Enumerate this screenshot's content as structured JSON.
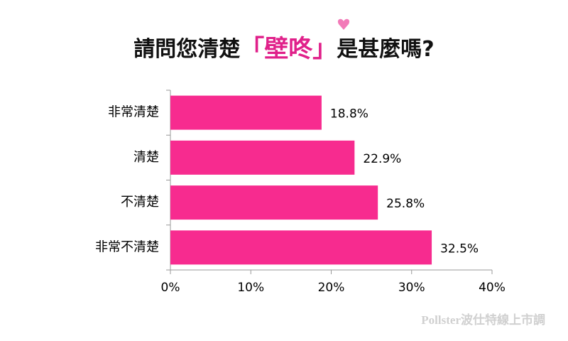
{
  "chart_data": {
    "type": "bar",
    "orientation": "horizontal",
    "title_segments": [
      {
        "text": "請問您清楚",
        "color": "#111111"
      },
      {
        "text": "「壁咚」",
        "color": "#e0208a"
      },
      {
        "text": "是甚麼嗎?",
        "color": "#111111"
      }
    ],
    "categories": [
      "非常清楚",
      "清楚",
      "不清楚",
      "非常不清楚"
    ],
    "values": [
      18.8,
      22.9,
      25.8,
      32.5
    ],
    "value_labels": [
      "18.8%",
      "22.9%",
      "25.8%",
      "32.5%"
    ],
    "color": "#f72b8f",
    "xlim": [
      0,
      40
    ],
    "xticks": [
      {
        "value": 0,
        "label": "0%"
      },
      {
        "value": 10,
        "label": "10%"
      },
      {
        "value": 20,
        "label": "20%"
      },
      {
        "value": 30,
        "label": "30%"
      },
      {
        "value": 40,
        "label": "40%"
      }
    ],
    "watermark": "Pollster波仕特線上市調"
  }
}
